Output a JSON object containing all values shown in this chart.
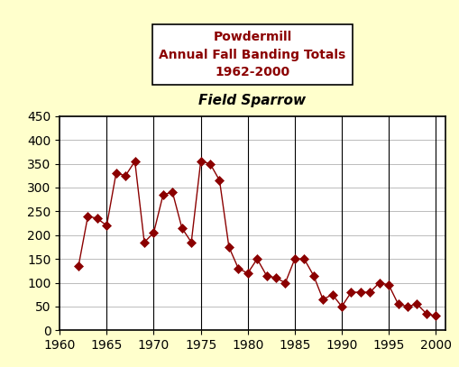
{
  "years": [
    1962,
    1963,
    1964,
    1965,
    1966,
    1967,
    1968,
    1969,
    1970,
    1971,
    1972,
    1973,
    1974,
    1975,
    1976,
    1977,
    1978,
    1979,
    1980,
    1981,
    1982,
    1983,
    1984,
    1985,
    1986,
    1987,
    1988,
    1989,
    1990,
    1991,
    1992,
    1993,
    1994,
    1995,
    1996,
    1997,
    1998,
    1999,
    2000
  ],
  "values": [
    135,
    240,
    235,
    220,
    330,
    325,
    355,
    185,
    205,
    285,
    290,
    215,
    185,
    355,
    350,
    315,
    175,
    130,
    120,
    150,
    115,
    110,
    100,
    150,
    150,
    115,
    65,
    75,
    50,
    80,
    80,
    80,
    100,
    95,
    55,
    50,
    55,
    35,
    30
  ],
  "line_color": "#8B0000",
  "marker_color": "#8B0000",
  "background_color": "#FFFFCC",
  "plot_bg_color": "#FFFFFF",
  "title_color": "#8B0000",
  "xlim": [
    1960,
    2001
  ],
  "ylim": [
    0,
    450
  ],
  "xticks": [
    1960,
    1965,
    1970,
    1975,
    1980,
    1985,
    1990,
    1995,
    2000
  ],
  "yticks": [
    0,
    50,
    100,
    150,
    200,
    250,
    300,
    350,
    400,
    450
  ],
  "grid_color": "#BBBBBB",
  "vline_years": [
    1965,
    1970,
    1975,
    1980,
    1985,
    1990,
    1995,
    2000
  ],
  "tick_fontsize": 10,
  "title_line1": "Powdermill",
  "title_line2": "Annual Fall Banding Totals",
  "title_line3": "1962-2000",
  "title_line4": "Field Sparrow"
}
